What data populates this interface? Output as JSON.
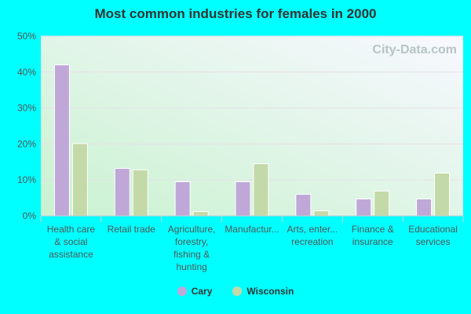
{
  "chart_data": {
    "type": "bar",
    "title": "Most common industries for females in 2000",
    "categories": [
      [
        "Health care",
        "& social",
        "assistance"
      ],
      [
        "Retail trade"
      ],
      [
        "Agriculture,",
        "forestry,",
        "fishing &",
        "hunting"
      ],
      [
        "Manufactur..."
      ],
      [
        "Arts, enter...",
        "recreation"
      ],
      [
        "Finance &",
        "insurance"
      ],
      [
        "Educational",
        "services"
      ]
    ],
    "series": [
      {
        "name": "Cary",
        "color": "#bfa8d8",
        "values": [
          42.0,
          13.2,
          9.5,
          9.5,
          6.0,
          4.7,
          4.7
        ]
      },
      {
        "name": "Wisconsin",
        "color": "#c4d9a8",
        "values": [
          20.1,
          12.8,
          1.2,
          14.5,
          1.4,
          6.9,
          11.9
        ]
      }
    ],
    "yticks": [
      "0%",
      "10%",
      "20%",
      "30%",
      "40%",
      "50%"
    ],
    "ylim": [
      0,
      50
    ],
    "grid": true,
    "legend_position": "bottom",
    "watermark": "City-Data.com"
  }
}
